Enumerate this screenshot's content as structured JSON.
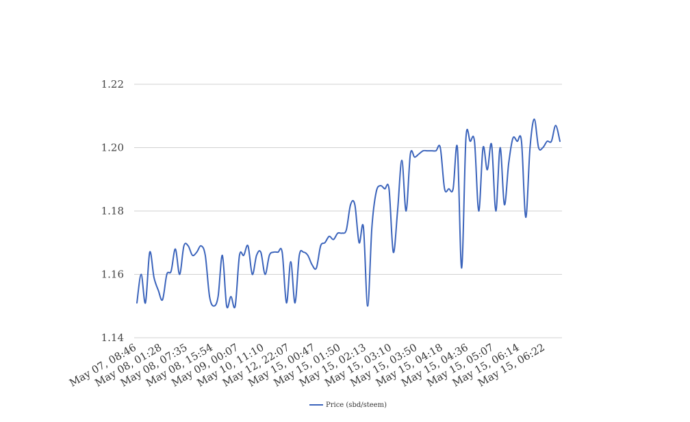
{
  "chart_data": {
    "type": "line",
    "title": "",
    "xlabel": "",
    "ylabel": "",
    "ylim": [
      1.14,
      1.22
    ],
    "y_ticks": [
      "1.14",
      "1.16",
      "1.18",
      "1.20",
      "1.22"
    ],
    "y_tick_values": [
      1.14,
      1.16,
      1.18,
      1.2,
      1.22
    ],
    "grid": "horizontal",
    "legend_position": "bottom",
    "x_tick_labels": [
      "May 07, 08:46",
      "May 08, 01:28",
      "May 08, 07:35",
      "May 08, 15:54",
      "May 09, 00:07",
      "May 10, 11:10",
      "May 12, 22:07",
      "May 15, 00:47",
      "May 15, 01:50",
      "May 15, 02:13",
      "May 15, 03:10",
      "May 15, 03:50",
      "May 15, 04:18",
      "May 15, 04:36",
      "May 15, 05:07",
      "May 15, 06:14",
      "May 15, 06:22"
    ],
    "series": [
      {
        "name": "Price (sbd/steem)",
        "color": "#3a63bb",
        "values": [
          1.151,
          1.16,
          1.151,
          1.167,
          1.159,
          1.155,
          1.152,
          1.16,
          1.161,
          1.168,
          1.16,
          1.169,
          1.169,
          1.166,
          1.167,
          1.169,
          1.166,
          1.153,
          1.15,
          1.153,
          1.166,
          1.15,
          1.153,
          1.15,
          1.166,
          1.166,
          1.169,
          1.16,
          1.166,
          1.167,
          1.16,
          1.166,
          1.167,
          1.167,
          1.167,
          1.151,
          1.164,
          1.151,
          1.166,
          1.167,
          1.166,
          1.163,
          1.162,
          1.169,
          1.17,
          1.172,
          1.171,
          1.173,
          1.173,
          1.174,
          1.182,
          1.182,
          1.17,
          1.175,
          1.15,
          1.175,
          1.186,
          1.188,
          1.187,
          1.187,
          1.167,
          1.18,
          1.196,
          1.18,
          1.198,
          1.197,
          1.198,
          1.199,
          1.199,
          1.199,
          1.199,
          1.2,
          1.187,
          1.187,
          1.187,
          1.2,
          1.162,
          1.203,
          1.202,
          1.202,
          1.18,
          1.2,
          1.193,
          1.201,
          1.18,
          1.2,
          1.182,
          1.195,
          1.203,
          1.202,
          1.202,
          1.178,
          1.2,
          1.209,
          1.2,
          1.2,
          1.202,
          1.202,
          1.207,
          1.202
        ]
      }
    ]
  }
}
